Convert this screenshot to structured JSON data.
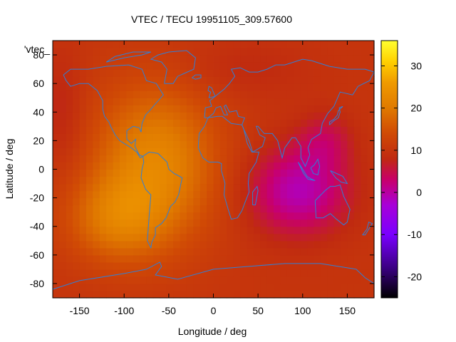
{
  "chart_data": {
    "type": "heatmap",
    "title": "VTEC / TECU 19951105_309.57600",
    "xlabel": "Longitude / deg",
    "ylabel": "Latitude / deg",
    "legend_key": "'vtec_",
    "xlim": [
      -180,
      180
    ],
    "ylim": [
      -90,
      90
    ],
    "x_ticks": [
      -150,
      -100,
      -50,
      0,
      50,
      100,
      150
    ],
    "y_ticks": [
      -80,
      -60,
      -40,
      -20,
      0,
      20,
      40,
      60,
      80
    ],
    "colorbar": {
      "range": [
        -25,
        36
      ],
      "ticks": [
        -20,
        -10,
        0,
        10,
        20,
        30
      ],
      "colormap": [
        [
          -25,
          "#000000"
        ],
        [
          -18,
          "#3a0080"
        ],
        [
          -10,
          "#7a00ff"
        ],
        [
          -3,
          "#a800d8"
        ],
        [
          3,
          "#c8006a"
        ],
        [
          8,
          "#c02a10"
        ],
        [
          14,
          "#d04a05"
        ],
        [
          20,
          "#e07a00"
        ],
        [
          26,
          "#f09a00"
        ],
        [
          31,
          "#ffd000"
        ],
        [
          36,
          "#ffff30"
        ]
      ]
    },
    "coastline_color": "#2f7fd8",
    "grid": false,
    "field_model": {
      "base_tecu": 10,
      "lat_extent": [
        -90,
        90
      ],
      "lon_extent": [
        -180,
        180
      ],
      "features": [
        {
          "kind": "gaussian",
          "lon": -65,
          "lat": 5,
          "sigma_lon": 70,
          "sigma_lat": 55,
          "amp": 12
        },
        {
          "kind": "gaussian",
          "lon": -110,
          "lat": -35,
          "sigma_lon": 55,
          "sigma_lat": 30,
          "amp": 8
        },
        {
          "kind": "gaussian",
          "lon": 95,
          "lat": -15,
          "sigma_lon": 55,
          "sigma_lat": 30,
          "amp": -11
        },
        {
          "kind": "gaussian",
          "lon": 125,
          "lat": 20,
          "sigma_lon": 30,
          "sigma_lat": 20,
          "amp": -5
        },
        {
          "kind": "gaussian",
          "lon": -170,
          "lat": 40,
          "sigma_lon": 25,
          "sigma_lat": 40,
          "amp": -3
        },
        {
          "kind": "gaussian",
          "lon": 30,
          "lat": 70,
          "sigma_lon": 80,
          "sigma_lat": 20,
          "amp": -2
        }
      ]
    }
  }
}
